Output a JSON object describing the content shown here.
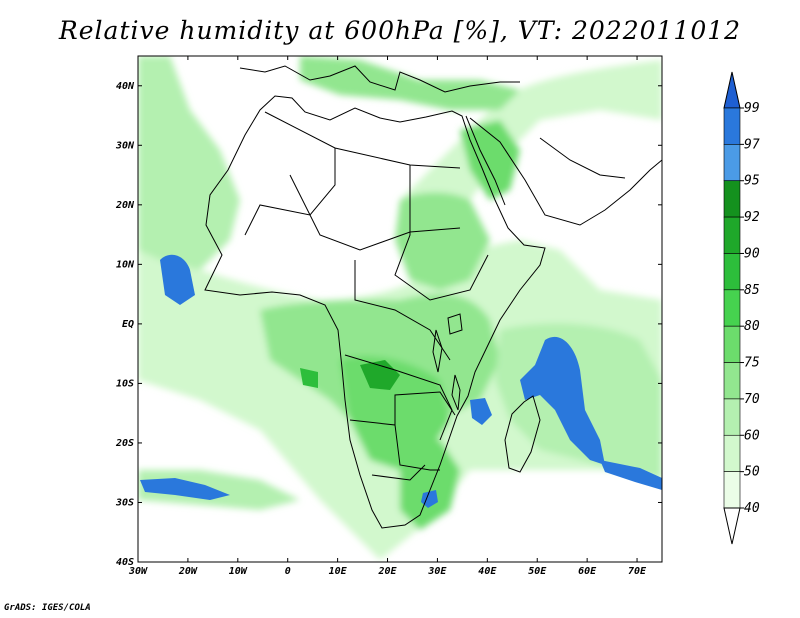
{
  "title": "Relative humidity at 600hPa [%], VT: 2022011012",
  "map": {
    "lon_range": [
      -30,
      75
    ],
    "lat_range": [
      -40,
      45
    ],
    "lat_ticks": [
      {
        "v": 40,
        "label": "40N"
      },
      {
        "v": 30,
        "label": "30N"
      },
      {
        "v": 20,
        "label": "20N"
      },
      {
        "v": 10,
        "label": "10N"
      },
      {
        "v": 0,
        "label": "EQ"
      },
      {
        "v": -10,
        "label": "10S"
      },
      {
        "v": -20,
        "label": "20S"
      },
      {
        "v": -30,
        "label": "30S"
      },
      {
        "v": -40,
        "label": "40S"
      }
    ],
    "lon_ticks": [
      {
        "v": -30,
        "label": "30W"
      },
      {
        "v": -20,
        "label": "20W"
      },
      {
        "v": -10,
        "label": "10W"
      },
      {
        "v": 0,
        "label": "0"
      },
      {
        "v": 10,
        "label": "10E"
      },
      {
        "v": 20,
        "label": "20E"
      },
      {
        "v": 30,
        "label": "30E"
      },
      {
        "v": 40,
        "label": "40E"
      },
      {
        "v": 50,
        "label": "50E"
      },
      {
        "v": 60,
        "label": "60E"
      },
      {
        "v": 70,
        "label": "70E"
      }
    ]
  },
  "colorbar": {
    "levels": [
      {
        "value": "99",
        "color": "#1e5fd2"
      },
      {
        "value": "97",
        "color": "#2a78dc"
      },
      {
        "value": "95",
        "color": "#4b9be6"
      },
      {
        "value": "92",
        "color": "#14911e"
      },
      {
        "value": "90",
        "color": "#1fa82a"
      },
      {
        "value": "85",
        "color": "#2dbe3b"
      },
      {
        "value": "80",
        "color": "#46d24f"
      },
      {
        "value": "75",
        "color": "#6cdc6c"
      },
      {
        "value": "70",
        "color": "#92e68f"
      },
      {
        "value": "60",
        "color": "#b4f0b0"
      },
      {
        "value": "50",
        "color": "#d2f8cd"
      },
      {
        "value": "40",
        "color": "#ebfde7"
      }
    ],
    "bottom_color": "#ffffff",
    "top_color": "#1e5fd2"
  },
  "credit": "GrADS: IGES/COLA"
}
